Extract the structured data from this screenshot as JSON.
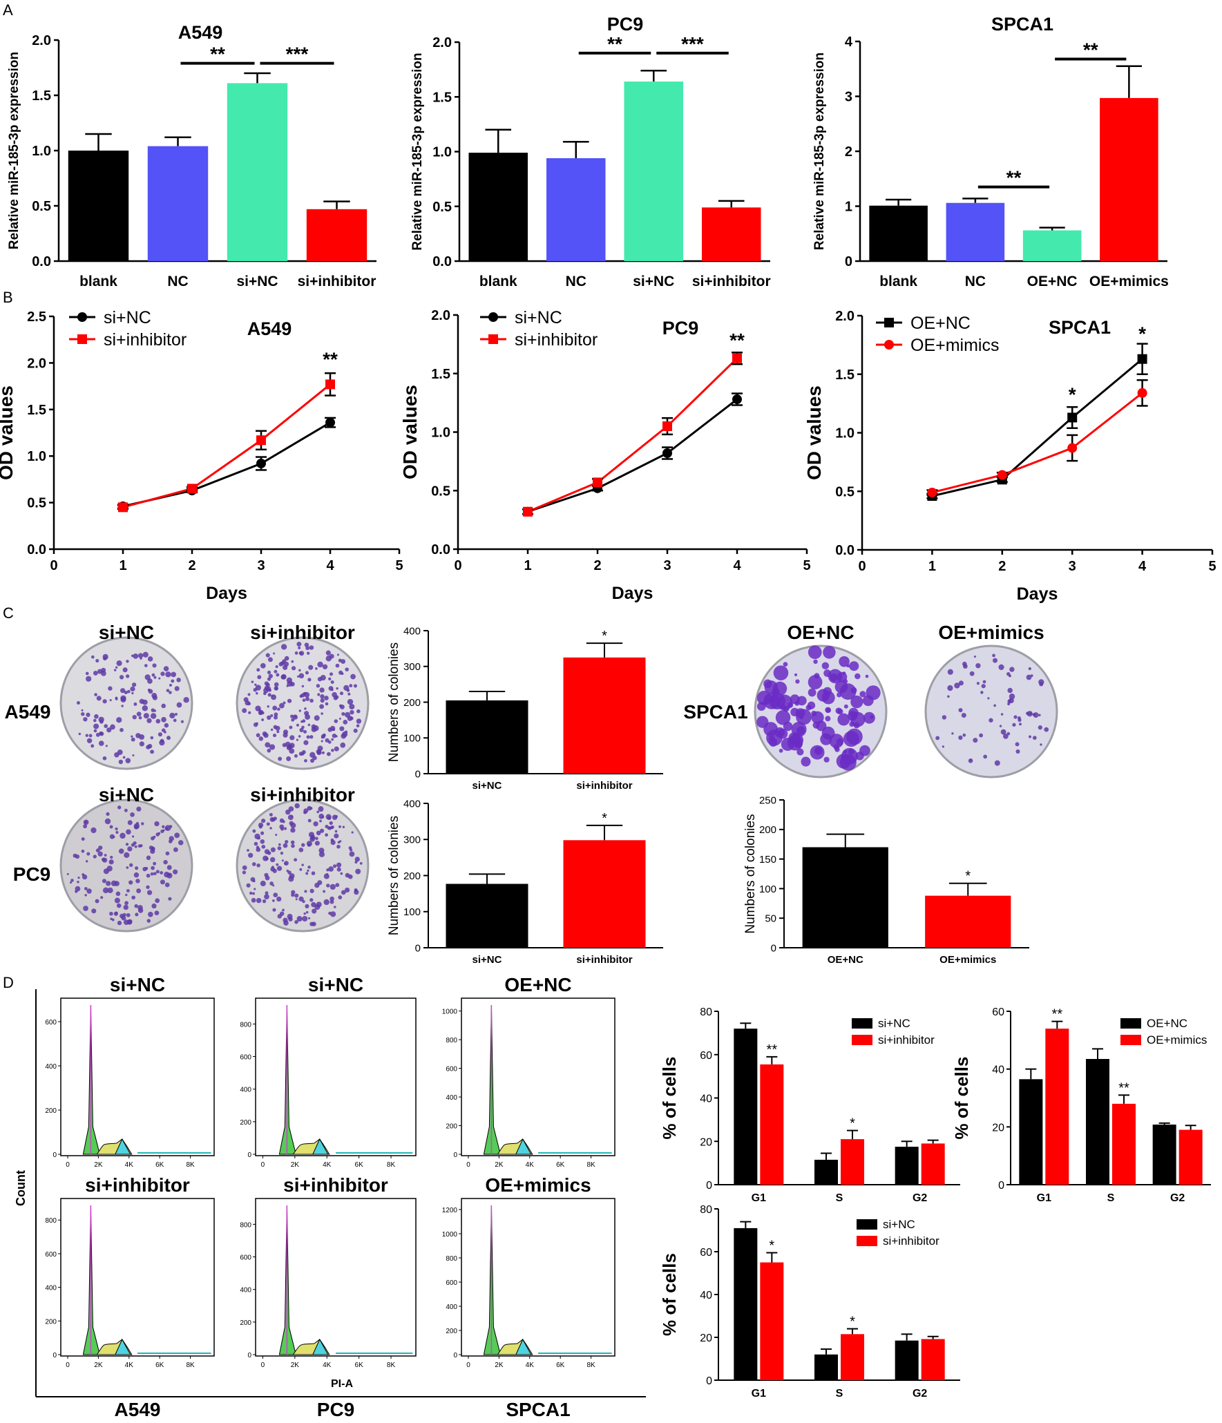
{
  "panel_letters": [
    "A",
    "B",
    "C",
    "D"
  ],
  "colors": {
    "black": "#000000",
    "blue": "#5353f7",
    "green": "#44eaad",
    "red": "#ff0000"
  },
  "chart_data": [
    {
      "id": "A1",
      "panel": "A",
      "type": "bar",
      "title": "A549",
      "ylabel": "Relative miR-185-3p expression",
      "categories": [
        "blank",
        "NC",
        "si+NC",
        "si+inhibitor"
      ],
      "values": [
        1.0,
        1.04,
        1.61,
        0.47
      ],
      "errors": [
        0.15,
        0.08,
        0.09,
        0.07
      ],
      "colors": [
        "#000000",
        "#5353f7",
        "#44eaad",
        "#ff0000"
      ],
      "ylim": [
        0,
        2.0
      ],
      "yticks": [
        "0.0",
        "0.5",
        "1.0",
        "1.5",
        "2.0"
      ],
      "ytick_values": [
        0,
        0.5,
        1.0,
        1.5,
        2.0
      ],
      "significance": [
        {
          "from": 1,
          "to": 2,
          "y": 1.79,
          "label": "**"
        },
        {
          "from": 2,
          "to": 3,
          "y": 1.79,
          "label": "***"
        }
      ]
    },
    {
      "id": "A2",
      "panel": "A",
      "type": "bar",
      "title": "PC9",
      "ylabel": "Relative miR-185-3p expression",
      "categories": [
        "blank",
        "NC",
        "si+NC",
        "si+inhibitor"
      ],
      "values": [
        0.99,
        0.94,
        1.64,
        0.49
      ],
      "errors": [
        0.21,
        0.15,
        0.1,
        0.06
      ],
      "colors": [
        "#000000",
        "#5353f7",
        "#44eaad",
        "#ff0000"
      ],
      "ylim": [
        0,
        2.0
      ],
      "yticks": [
        "0.0",
        "0.5",
        "1.0",
        "1.5",
        "2.0"
      ],
      "ytick_values": [
        0,
        0.5,
        1.0,
        1.5,
        2.0
      ],
      "significance": [
        {
          "from": 1,
          "to": 2,
          "y": 1.9,
          "label": "**"
        },
        {
          "from": 2,
          "to": 3,
          "y": 1.9,
          "label": "***"
        }
      ]
    },
    {
      "id": "A3",
      "panel": "A",
      "type": "bar",
      "title": "SPCA1",
      "ylabel": "Relative miR-185-3p expression",
      "categories": [
        "blank",
        "NC",
        "OE+NC",
        "OE+mimics"
      ],
      "values": [
        1.01,
        1.06,
        0.56,
        2.97
      ],
      "errors": [
        0.11,
        0.08,
        0.05,
        0.58
      ],
      "colors": [
        "#000000",
        "#5353f7",
        "#44eaad",
        "#ff0000"
      ],
      "ylim": [
        0,
        4
      ],
      "yticks": [
        "0",
        "1",
        "2",
        "3",
        "4"
      ],
      "ytick_values": [
        0,
        1,
        2,
        3,
        4
      ],
      "significance": [
        {
          "from": 1,
          "to": 2,
          "y": 1.35,
          "label": "**"
        },
        {
          "from": 2,
          "to": 3,
          "y": 3.68,
          "label": "**"
        }
      ]
    },
    {
      "id": "B1",
      "panel": "B",
      "type": "line",
      "title": "A549",
      "xlabel": "Days",
      "ylabel": "OD values",
      "x": [
        1,
        2,
        3,
        4
      ],
      "xlim": [
        0,
        5
      ],
      "xticks": [
        "0",
        "1",
        "2",
        "3",
        "4",
        "5"
      ],
      "ylim": [
        0,
        2.5
      ],
      "yticks": [
        "0.0",
        "0.5",
        "1.0",
        "1.5",
        "2.0",
        "2.5"
      ],
      "ytick_values": [
        0,
        0.5,
        1.0,
        1.5,
        2.0,
        2.5
      ],
      "series": [
        {
          "name": "si+NC",
          "color": "#000000",
          "marker": "circle",
          "values": [
            0.46,
            0.63,
            0.92,
            1.36
          ],
          "errors": [
            0.02,
            0.02,
            0.07,
            0.05
          ]
        },
        {
          "name": "si+inhibitor",
          "color": "#ff0000",
          "marker": "square",
          "values": [
            0.45,
            0.65,
            1.17,
            1.77
          ],
          "errors": [
            0.02,
            0.02,
            0.1,
            0.12
          ]
        }
      ],
      "annotations": [
        {
          "x": 4,
          "y": 1.97,
          "label": "**"
        }
      ]
    },
    {
      "id": "B2",
      "panel": "B",
      "type": "line",
      "title": "PC9",
      "xlabel": "Days",
      "ylabel": "OD values",
      "x": [
        1,
        2,
        3,
        4
      ],
      "xlim": [
        0,
        5
      ],
      "xticks": [
        "0",
        "1",
        "2",
        "3",
        "4",
        "5"
      ],
      "ylim": [
        0,
        2.0
      ],
      "yticks": [
        "0.0",
        "0.5",
        "1.0",
        "1.5",
        "2.0"
      ],
      "ytick_values": [
        0,
        0.5,
        1.0,
        1.5,
        2.0
      ],
      "series": [
        {
          "name": "si+NC",
          "color": "#000000",
          "marker": "circle",
          "values": [
            0.32,
            0.52,
            0.82,
            1.28
          ],
          "errors": [
            0.02,
            0.02,
            0.05,
            0.05
          ]
        },
        {
          "name": "si+inhibitor",
          "color": "#ff0000",
          "marker": "square",
          "values": [
            0.32,
            0.57,
            1.05,
            1.63
          ],
          "errors": [
            0.02,
            0.03,
            0.07,
            0.05
          ]
        }
      ],
      "annotations": [
        {
          "x": 4,
          "y": 1.73,
          "label": "**"
        }
      ]
    },
    {
      "id": "B3",
      "panel": "B",
      "type": "line",
      "title": "SPCA1",
      "xlabel": "Days",
      "ylabel": "OD values",
      "x": [
        1,
        2,
        3,
        4
      ],
      "xlim": [
        0,
        5
      ],
      "xticks": [
        "0",
        "1",
        "2",
        "3",
        "4",
        "5"
      ],
      "ylim": [
        0,
        2.0
      ],
      "yticks": [
        "0.0",
        "0.5",
        "1.0",
        "1.5",
        "2.0"
      ],
      "ytick_values": [
        0,
        0.5,
        1.0,
        1.5,
        2.0
      ],
      "series": [
        {
          "name": "OE+NC",
          "color": "#000000",
          "marker": "square",
          "values": [
            0.46,
            0.6,
            1.13,
            1.63
          ],
          "errors": [
            0.02,
            0.02,
            0.09,
            0.13
          ]
        },
        {
          "name": "OE+mimics",
          "color": "#ff0000",
          "marker": "circle",
          "values": [
            0.49,
            0.64,
            0.87,
            1.34
          ],
          "errors": [
            0.02,
            0.02,
            0.11,
            0.11
          ]
        }
      ],
      "annotations": [
        {
          "x": 3,
          "y": 1.27,
          "label": "*"
        },
        {
          "x": 4,
          "y": 1.79,
          "label": "*"
        }
      ]
    },
    {
      "id": "C1",
      "panel": "C",
      "type": "bar",
      "title": "",
      "ylabel": "Numbers of colonies",
      "categories": [
        "si+NC",
        "si+inhibitor"
      ],
      "values": [
        205,
        325
      ],
      "errors": [
        25,
        40
      ],
      "colors": [
        "#000000",
        "#ff0000"
      ],
      "ylim": [
        0,
        400
      ],
      "yticks": [
        "0",
        "100",
        "200",
        "300",
        "400"
      ],
      "ytick_values": [
        0,
        100,
        200,
        300,
        400
      ],
      "annotations": [
        {
          "index": 1,
          "label": "*"
        }
      ]
    },
    {
      "id": "C2",
      "panel": "C",
      "type": "bar",
      "title": "",
      "ylabel": "Numbers of colonies",
      "categories": [
        "si+NC",
        "si+inhibitor"
      ],
      "values": [
        177,
        298
      ],
      "errors": [
        27,
        41
      ],
      "colors": [
        "#000000",
        "#ff0000"
      ],
      "ylim": [
        0,
        400
      ],
      "yticks": [
        "0",
        "100",
        "200",
        "300",
        "400"
      ],
      "ytick_values": [
        0,
        100,
        200,
        300,
        400
      ],
      "annotations": [
        {
          "index": 1,
          "label": "*"
        }
      ]
    },
    {
      "id": "C3",
      "panel": "C",
      "type": "bar",
      "title": "",
      "ylabel": "Numbers of colonies",
      "categories": [
        "OE+NC",
        "OE+mimics"
      ],
      "values": [
        170,
        88
      ],
      "errors": [
        22,
        21
      ],
      "colors": [
        "#000000",
        "#ff0000"
      ],
      "ylim": [
        0,
        250
      ],
      "yticks": [
        "0",
        "50",
        "100",
        "150",
        "200",
        "250"
      ],
      "ytick_values": [
        0,
        50,
        100,
        150,
        200,
        250
      ],
      "annotations": [
        {
          "index": 1,
          "label": "*"
        }
      ]
    },
    {
      "id": "D1",
      "panel": "D",
      "type": "bar",
      "title": "",
      "ylabel": "% of cells",
      "categories": [
        "G1",
        "S",
        "G2"
      ],
      "ylim": [
        0,
        80
      ],
      "yticks": [
        "0",
        "20",
        "40",
        "60",
        "80"
      ],
      "ytick_values": [
        0,
        20,
        40,
        60,
        80
      ],
      "series": [
        {
          "name": "si+NC",
          "color": "#000000",
          "values": [
            72,
            11.5,
            17.5
          ],
          "errors": [
            2.5,
            3,
            2.5
          ]
        },
        {
          "name": "si+inhibitor",
          "color": "#ff0000",
          "values": [
            55.5,
            21,
            19
          ],
          "errors": [
            3.5,
            4,
            1.5
          ]
        }
      ],
      "annotations": [
        {
          "group": 0,
          "series": 1,
          "label": "**"
        },
        {
          "group": 1,
          "series": 1,
          "label": "*"
        }
      ]
    },
    {
      "id": "D2",
      "panel": "D",
      "type": "bar",
      "title": "",
      "ylabel": "% of cells",
      "categories": [
        "G1",
        "S",
        "G2"
      ],
      "ylim": [
        0,
        60
      ],
      "yticks": [
        "0",
        "20",
        "40",
        "60"
      ],
      "ytick_values": [
        0,
        20,
        40,
        60
      ],
      "series": [
        {
          "name": "OE+NC",
          "color": "#000000",
          "values": [
            36.5,
            43.5,
            20.8
          ],
          "errors": [
            3.5,
            3.5,
            0.5
          ]
        },
        {
          "name": "OE+mimics",
          "color": "#ff0000",
          "values": [
            54,
            28,
            19
          ],
          "errors": [
            2.5,
            3,
            1.5
          ]
        }
      ],
      "annotations": [
        {
          "group": 0,
          "series": 1,
          "label": "**"
        },
        {
          "group": 1,
          "series": 1,
          "label": "**"
        }
      ]
    },
    {
      "id": "D3",
      "panel": "D",
      "type": "bar",
      "title": "",
      "ylabel": "% of cells",
      "categories": [
        "G1",
        "S",
        "G2"
      ],
      "ylim": [
        0,
        80
      ],
      "yticks": [
        "0",
        "20",
        "40",
        "60",
        "80"
      ],
      "ytick_values": [
        0,
        20,
        40,
        60,
        80
      ],
      "series": [
        {
          "name": "si+NC",
          "color": "#000000",
          "values": [
            71,
            12,
            18.5
          ],
          "errors": [
            3,
            2.5,
            3
          ]
        },
        {
          "name": "si+inhibitor",
          "color": "#ff0000",
          "values": [
            55,
            21.5,
            19.2
          ],
          "errors": [
            4.5,
            2.5,
            1.2
          ]
        }
      ],
      "annotations": [
        {
          "group": 0,
          "series": 1,
          "label": "*"
        },
        {
          "group": 1,
          "series": 1,
          "label": "*"
        }
      ]
    }
  ],
  "colony_images": {
    "row1": {
      "cell_line": "A549",
      "titles": [
        "si+NC",
        "si+inhibitor"
      ]
    },
    "row2": {
      "cell_line": "PC9",
      "titles": [
        "si+NC",
        "si+inhibitor"
      ]
    },
    "spca1": {
      "cell_line": "SPCA1",
      "titles": [
        "OE+NC",
        "OE+mimics"
      ]
    }
  },
  "flow_histograms": {
    "ylabel": "Count",
    "xlabel": "PI-A",
    "xticks": [
      "0",
      "2K",
      "4K",
      "6K",
      "8K"
    ],
    "columns": [
      {
        "cell_line": "A549",
        "top_title": "si+NC",
        "bottom_title": "si+inhibitor",
        "top_yticks": [
          "0",
          "200",
          "400",
          "600"
        ],
        "top_ymax": 700,
        "bottom_yticks": [
          "0",
          "200",
          "400",
          "600",
          "800"
        ],
        "bottom_ymax": 920
      },
      {
        "cell_line": "PC9",
        "top_title": "si+NC",
        "bottom_title": "si+inhibitor",
        "top_yticks": [
          "0",
          "200",
          "400",
          "600",
          "800"
        ],
        "top_ymax": 950,
        "bottom_yticks": [
          "0",
          "200",
          "400",
          "600",
          "800"
        ],
        "bottom_ymax": 950
      },
      {
        "cell_line": "SPCA1",
        "top_title": "OE+NC",
        "bottom_title": "OE+mimics",
        "top_yticks": [
          "0",
          "200",
          "400",
          "600",
          "800",
          "1000"
        ],
        "top_ymax": 1080,
        "bottom_yticks": [
          "0",
          "200",
          "400",
          "600",
          "800",
          "1000",
          "1200"
        ],
        "bottom_ymax": 1280
      }
    ]
  }
}
